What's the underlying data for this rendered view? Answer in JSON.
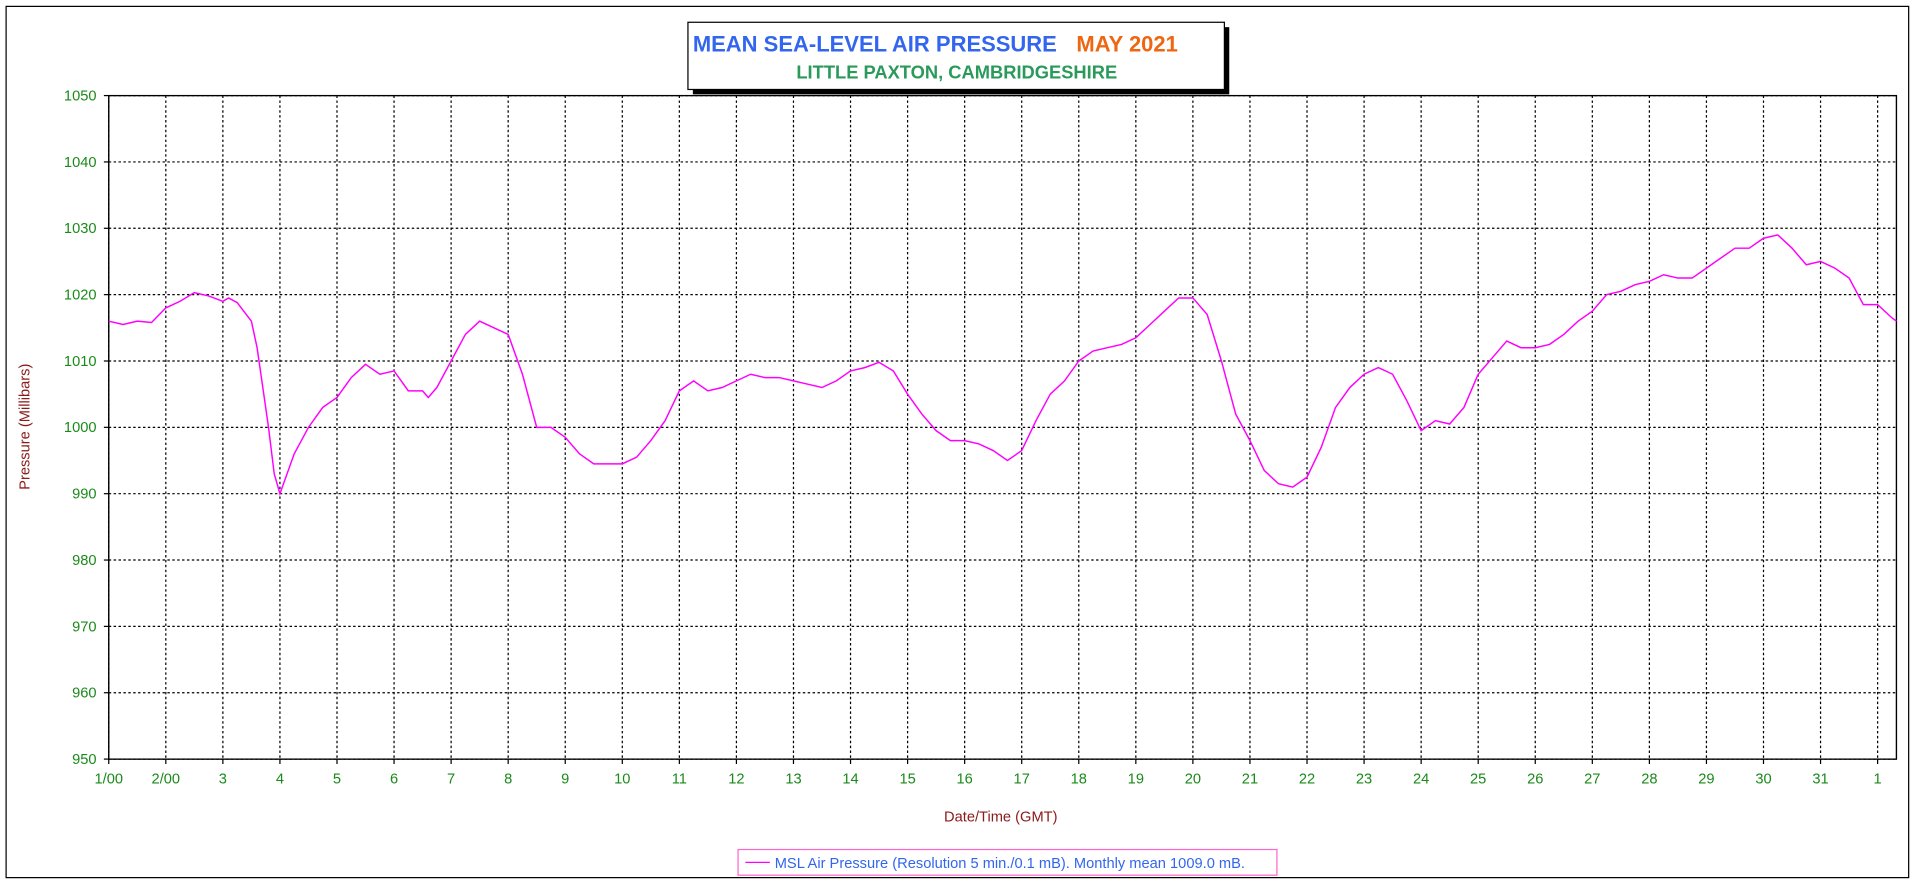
{
  "chart_data": {
    "type": "line",
    "title": "MEAN SEA-LEVEL AIR PRESSURE",
    "period": "MAY 2021",
    "subtitle": "LITTLE PAXTON, CAMBRIDGESHIRE",
    "x_label": "Date/Time (GMT)",
    "y_label": "Pressure (Millibars)",
    "grid": true,
    "xlim": [
      0,
      31.33
    ],
    "ylim": [
      950,
      1050
    ],
    "yticks": [
      950,
      960,
      970,
      980,
      990,
      1000,
      1010,
      1020,
      1030,
      1040,
      1050
    ],
    "xticks": [
      {
        "value": 0,
        "label": "1/00"
      },
      {
        "value": 1,
        "label": "2/00"
      },
      {
        "value": 2,
        "label": "3"
      },
      {
        "value": 3,
        "label": "4"
      },
      {
        "value": 4,
        "label": "5"
      },
      {
        "value": 5,
        "label": "6"
      },
      {
        "value": 6,
        "label": "7"
      },
      {
        "value": 7,
        "label": "8"
      },
      {
        "value": 8,
        "label": "9"
      },
      {
        "value": 9,
        "label": "10"
      },
      {
        "value": 10,
        "label": "11"
      },
      {
        "value": 11,
        "label": "12"
      },
      {
        "value": 12,
        "label": "13"
      },
      {
        "value": 13,
        "label": "14"
      },
      {
        "value": 14,
        "label": "15"
      },
      {
        "value": 15,
        "label": "16"
      },
      {
        "value": 16,
        "label": "17"
      },
      {
        "value": 17,
        "label": "18"
      },
      {
        "value": 18,
        "label": "19"
      },
      {
        "value": 19,
        "label": "20"
      },
      {
        "value": 20,
        "label": "21"
      },
      {
        "value": 21,
        "label": "22"
      },
      {
        "value": 22,
        "label": "23"
      },
      {
        "value": 23,
        "label": "24"
      },
      {
        "value": 24,
        "label": "25"
      },
      {
        "value": 25,
        "label": "26"
      },
      {
        "value": 26,
        "label": "27"
      },
      {
        "value": 27,
        "label": "28"
      },
      {
        "value": 28,
        "label": "29"
      },
      {
        "value": 29,
        "label": "30"
      },
      {
        "value": 30,
        "label": "31"
      },
      {
        "value": 31,
        "label": "1"
      }
    ],
    "x": [
      0,
      0.25,
      0.5,
      0.75,
      1,
      1.25,
      1.5,
      1.75,
      2,
      2.1,
      2.25,
      2.5,
      2.6,
      2.8,
      2.9,
      3,
      3.25,
      3.5,
      3.75,
      4,
      4.25,
      4.5,
      4.75,
      5,
      5.25,
      5.5,
      5.6,
      5.75,
      6,
      6.25,
      6.5,
      6.75,
      7,
      7.25,
      7.5,
      7.75,
      8,
      8.25,
      8.5,
      8.75,
      9,
      9.25,
      9.5,
      9.75,
      10,
      10.25,
      10.5,
      10.75,
      11,
      11.25,
      11.5,
      11.75,
      12,
      12.25,
      12.5,
      12.75,
      13,
      13.25,
      13.5,
      13.75,
      14,
      14.25,
      14.5,
      14.75,
      15,
      15.25,
      15.5,
      15.75,
      16,
      16.25,
      16.5,
      16.75,
      17,
      17.25,
      17.5,
      17.75,
      18,
      18.25,
      18.5,
      18.75,
      19,
      19.25,
      19.5,
      19.75,
      20,
      20.25,
      20.5,
      20.75,
      21,
      21.25,
      21.5,
      21.75,
      22,
      22.25,
      22.5,
      22.75,
      23,
      23.25,
      23.5,
      23.75,
      24,
      24.25,
      24.5,
      24.75,
      25,
      25.25,
      25.5,
      25.75,
      26,
      26.25,
      26.5,
      26.75,
      27,
      27.25,
      27.5,
      27.75,
      28,
      28.25,
      28.5,
      28.75,
      29,
      29.25,
      29.5,
      29.75,
      30,
      30.25,
      30.5,
      30.75,
      31,
      31.25,
      31.33
    ],
    "series": [
      {
        "name": "MSL Air Pressure (Resolution 5 min./0.1 mB). Monthly mean 1009.0 mB.",
        "color": "#ff00ff",
        "values": [
          1016,
          1015.5,
          1016,
          1015.8,
          1018,
          1019,
          1020.3,
          1019.8,
          1019,
          1019.5,
          1018.8,
          1016,
          1012,
          1000,
          993,
          990,
          996,
          1000,
          1003,
          1004.5,
          1007.5,
          1009.5,
          1008,
          1008.5,
          1005.5,
          1005.5,
          1004.5,
          1006,
          1010,
          1014,
          1016,
          1015,
          1014,
          1008,
          1000,
          1000,
          998.5,
          996,
          994.5,
          994.5,
          994.5,
          995.5,
          998,
          1001,
          1005.5,
          1007,
          1005.5,
          1006,
          1007,
          1008,
          1007.5,
          1007.5,
          1007,
          1006.5,
          1006,
          1007,
          1008.5,
          1009,
          1009.8,
          1008.5,
          1005,
          1002,
          999.5,
          998,
          998,
          997.5,
          996.5,
          995,
          996.5,
          1001,
          1005,
          1007,
          1010,
          1011.5,
          1012,
          1012.5,
          1013.5,
          1015.5,
          1017.5,
          1019.5,
          1019.5,
          1017,
          1010,
          1002,
          998,
          993.5,
          991.5,
          991,
          992.5,
          997,
          1003,
          1006,
          1008,
          1009,
          1008,
          1004,
          999.5,
          1001,
          1000.5,
          1003,
          1008,
          1010.5,
          1013,
          1012,
          1012,
          1012.5,
          1014,
          1016,
          1017.5,
          1020,
          1020.5,
          1021.5,
          1022,
          1023,
          1022.5,
          1022.5,
          1024,
          1025.5,
          1027,
          1027,
          1028.5,
          1029,
          1027,
          1024.5,
          1025,
          1024,
          1022.5,
          1018.5,
          1018.5,
          1016.5,
          1016
        ]
      }
    ]
  }
}
